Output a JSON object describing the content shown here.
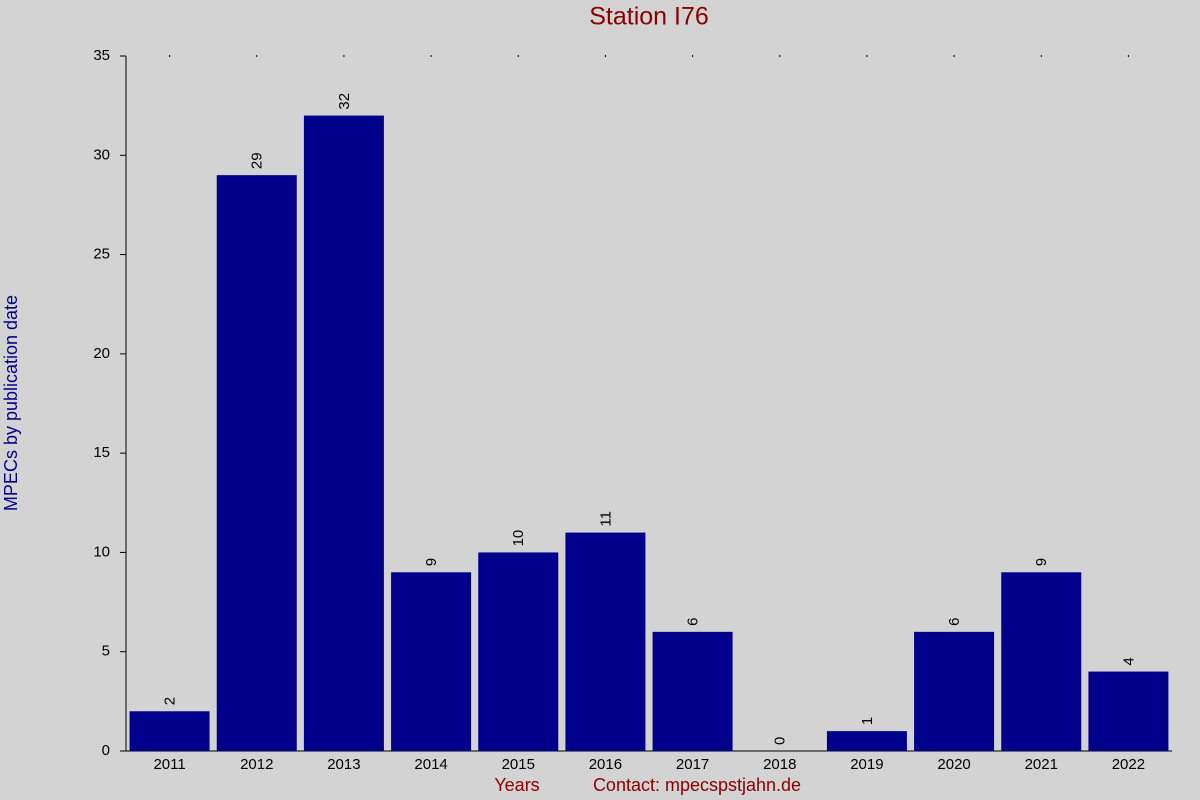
{
  "chart_data": {
    "type": "bar",
    "title": "Station I76",
    "ylabel": "MPECs by publication date",
    "xlabel": "Years",
    "note": "Contact: mpecspstjahn.de",
    "categories": [
      "2011",
      "2012",
      "2013",
      "2014",
      "2015",
      "2016",
      "2017",
      "2018",
      "2019",
      "2020",
      "2021",
      "2022"
    ],
    "values": [
      2,
      29,
      32,
      9,
      10,
      11,
      6,
      0,
      1,
      6,
      9,
      4
    ],
    "color": "#00008b",
    "ylim": [
      0,
      35
    ],
    "yticks": [
      0,
      5,
      10,
      15,
      20,
      25,
      30,
      35
    ],
    "grid": false
  }
}
